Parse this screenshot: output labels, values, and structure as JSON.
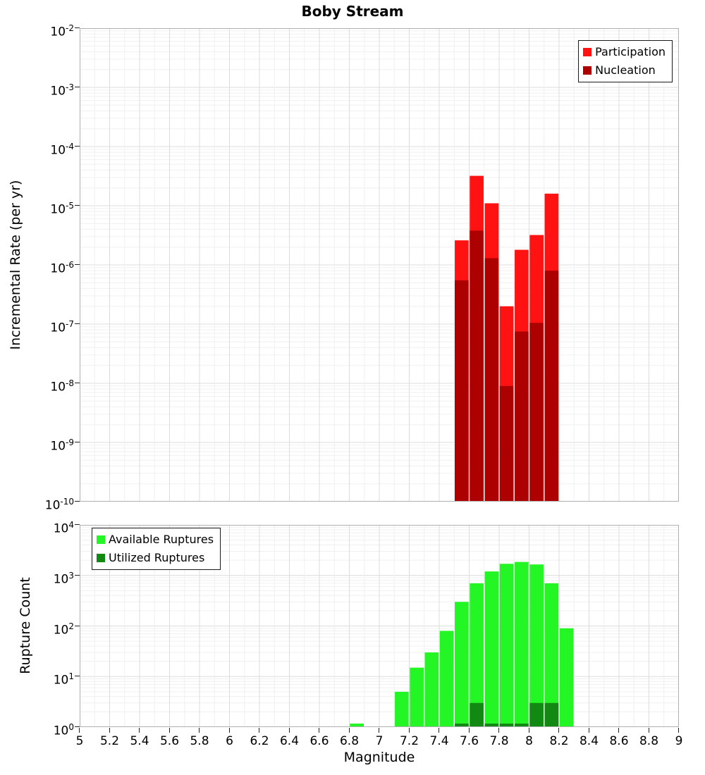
{
  "figure": {
    "title": "Boby Stream"
  },
  "x_axis": {
    "label": "Magnitude",
    "min": 5,
    "max": 9,
    "tick_labels": [
      "5",
      "5.2",
      "5.4",
      "5.6",
      "5.8",
      "6",
      "6.2",
      "6.4",
      "6.6",
      "6.8",
      "7",
      "7.2",
      "7.4",
      "7.6",
      "7.8",
      "8",
      "8.2",
      "8.4",
      "8.6",
      "8.8",
      "9"
    ]
  },
  "chart_data": [
    {
      "type": "bar",
      "title": "Boby Stream",
      "ylabel": "Incremental Rate (per yr)",
      "yscale": "log",
      "ylim": [
        1e-10,
        0.01
      ],
      "y_exp_min": -10,
      "y_exp_max": -2,
      "y_tick_exponents": [
        -2,
        -3,
        -4,
        -5,
        -6,
        -7,
        -8,
        -9,
        -10
      ],
      "xlim": [
        5,
        9
      ],
      "bin_width": 0.1,
      "grid": true,
      "legend_position": "upper-right",
      "series": [
        {
          "name": "Participation",
          "color": "#ff1212",
          "bins": [
            {
              "x": 7.5,
              "y": 2.6e-06
            },
            {
              "x": 7.6,
              "y": 3.2e-05
            },
            {
              "x": 7.7,
              "y": 1.1e-05
            },
            {
              "x": 7.8,
              "y": 2e-07
            },
            {
              "x": 7.9,
              "y": 1.8e-06
            },
            {
              "x": 8.0,
              "y": 3.2e-06
            },
            {
              "x": 8.1,
              "y": 1.6e-05
            }
          ]
        },
        {
          "name": "Nucleation",
          "color": "#ad0000",
          "bins": [
            {
              "x": 7.5,
              "y": 5.5e-07
            },
            {
              "x": 7.6,
              "y": 3.8e-06
            },
            {
              "x": 7.7,
              "y": 1.3e-06
            },
            {
              "x": 7.8,
              "y": 9e-09
            },
            {
              "x": 7.9,
              "y": 7.5e-08
            },
            {
              "x": 8.0,
              "y": 1.05e-07
            },
            {
              "x": 8.1,
              "y": 8e-07
            }
          ]
        }
      ]
    },
    {
      "type": "bar",
      "ylabel": "Rupture Count",
      "yscale": "log",
      "ylim": [
        1,
        10000
      ],
      "y_exp_min": 0,
      "y_exp_max": 4,
      "y_tick_exponents": [
        4,
        3,
        2,
        1,
        0
      ],
      "xlim": [
        5,
        9
      ],
      "bin_width": 0.1,
      "grid": true,
      "legend_position": "upper-left",
      "series": [
        {
          "name": "Available Ruptures",
          "color": "#24f524",
          "bins": [
            {
              "x": 6.8,
              "y": 1
            },
            {
              "x": 7.1,
              "y": 5
            },
            {
              "x": 7.2,
              "y": 15
            },
            {
              "x": 7.3,
              "y": 30
            },
            {
              "x": 7.4,
              "y": 80
            },
            {
              "x": 7.5,
              "y": 300
            },
            {
              "x": 7.6,
              "y": 700
            },
            {
              "x": 7.7,
              "y": 1200
            },
            {
              "x": 7.8,
              "y": 1700
            },
            {
              "x": 7.9,
              "y": 1850
            },
            {
              "x": 8.0,
              "y": 1650
            },
            {
              "x": 8.1,
              "y": 700
            },
            {
              "x": 8.2,
              "y": 90
            }
          ]
        },
        {
          "name": "Utilized Ruptures",
          "color": "#128912",
          "bins": [
            {
              "x": 7.5,
              "y": 1
            },
            {
              "x": 7.6,
              "y": 3
            },
            {
              "x": 7.7,
              "y": 1
            },
            {
              "x": 7.8,
              "y": 1
            },
            {
              "x": 7.9,
              "y": 1
            },
            {
              "x": 8.0,
              "y": 3
            },
            {
              "x": 8.1,
              "y": 3
            }
          ]
        }
      ]
    }
  ]
}
